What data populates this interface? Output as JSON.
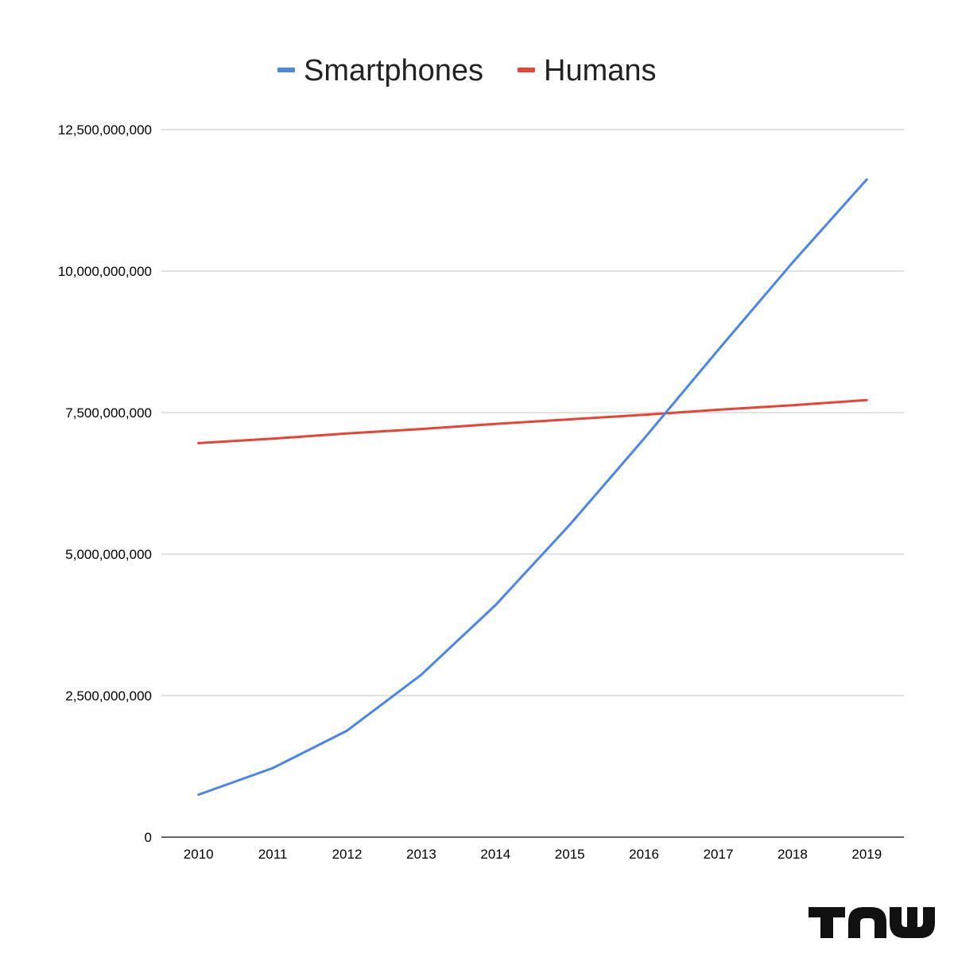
{
  "chart_data": {
    "type": "line",
    "categories": [
      "2010",
      "2011",
      "2012",
      "2013",
      "2014",
      "2015",
      "2016",
      "2017",
      "2018",
      "2019"
    ],
    "series": [
      {
        "name": "Smartphones",
        "color": "#4a86e8",
        "values": [
          750000000,
          1220000000,
          1880000000,
          2870000000,
          4100000000,
          5520000000,
          7040000000,
          8610000000,
          10150000000,
          11620000000
        ]
      },
      {
        "name": "Humans",
        "color": "#ea4335",
        "values": [
          6960000000,
          7040000000,
          7130000000,
          7210000000,
          7300000000,
          7380000000,
          7460000000,
          7550000000,
          7630000000,
          7720000000
        ]
      }
    ],
    "ylim": [
      0,
      12500000000
    ],
    "yticks": [
      "0",
      "2,500,000,000",
      "5,000,000,000",
      "7,500,000,000",
      "10,000,000,000",
      "12,500,000,000"
    ],
    "ytick_values": [
      0,
      2500000000,
      5000000000,
      7500000000,
      10000000000,
      12500000000
    ],
    "grid": true,
    "legend_position": "top-center",
    "title": "",
    "xlabel": "",
    "ylabel": ""
  },
  "logo": {
    "text": "TNW",
    "icon": "tnw-logo"
  }
}
